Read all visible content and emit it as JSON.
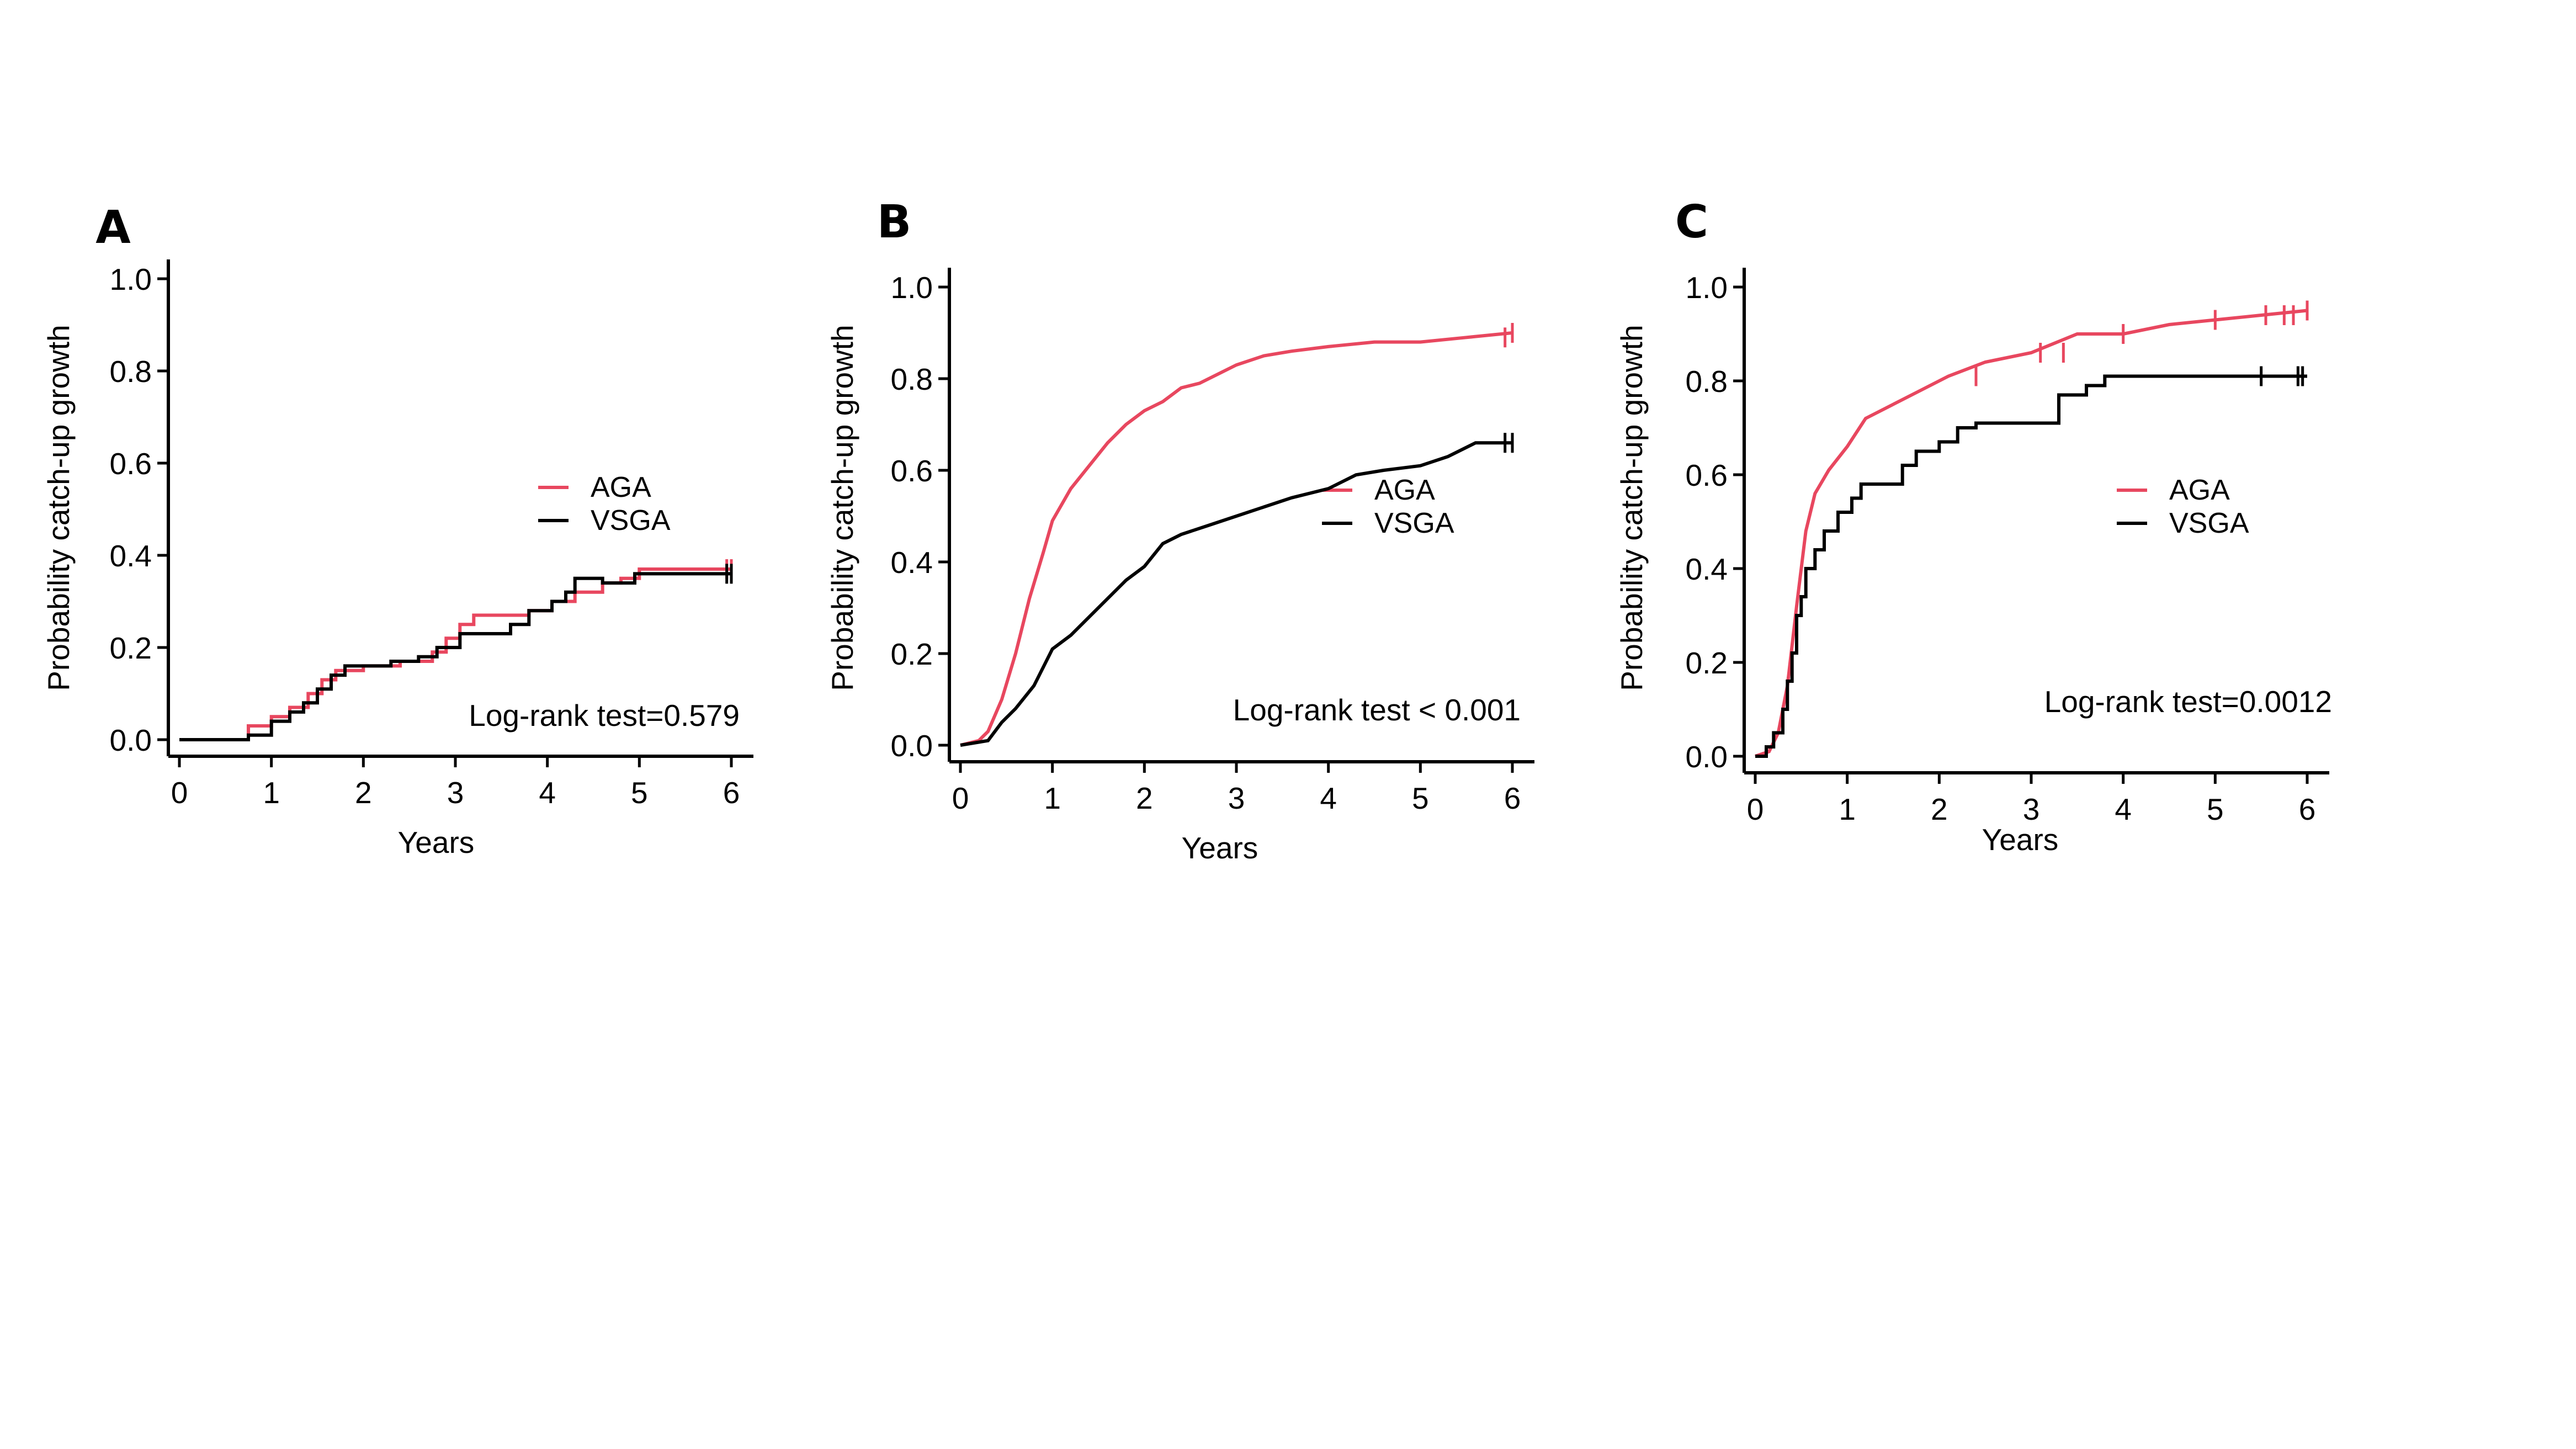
{
  "chart_data": [
    {
      "type": "line",
      "panel": "A",
      "title": "",
      "xlabel": "Years",
      "ylabel": "Probability catch-up growth",
      "xlim": [
        0,
        6
      ],
      "ylim": [
        0,
        1
      ],
      "xticks": [
        "0",
        "1",
        "2",
        "3",
        "4",
        "5",
        "6"
      ],
      "yticks": [
        "0.0",
        "0.2",
        "0.4",
        "0.6",
        "0.8",
        "1.0"
      ],
      "annotation": "Log-rank test=0.579",
      "legend_position": "right",
      "series": [
        {
          "name": "AGA",
          "color": "#e8475f",
          "step": true,
          "points": [
            [
              0,
              0
            ],
            [
              0.75,
              0
            ],
            [
              0.75,
              0.03
            ],
            [
              1.0,
              0.03
            ],
            [
              1.0,
              0.05
            ],
            [
              1.2,
              0.05
            ],
            [
              1.2,
              0.07
            ],
            [
              1.4,
              0.07
            ],
            [
              1.4,
              0.1
            ],
            [
              1.55,
              0.1
            ],
            [
              1.55,
              0.13
            ],
            [
              1.7,
              0.13
            ],
            [
              1.7,
              0.15
            ],
            [
              2.0,
              0.15
            ],
            [
              2.0,
              0.16
            ],
            [
              2.4,
              0.16
            ],
            [
              2.4,
              0.17
            ],
            [
              2.75,
              0.17
            ],
            [
              2.75,
              0.19
            ],
            [
              2.9,
              0.19
            ],
            [
              2.9,
              0.22
            ],
            [
              3.05,
              0.22
            ],
            [
              3.05,
              0.25
            ],
            [
              3.2,
              0.25
            ],
            [
              3.2,
              0.27
            ],
            [
              3.8,
              0.27
            ],
            [
              3.8,
              0.28
            ],
            [
              4.05,
              0.28
            ],
            [
              4.05,
              0.3
            ],
            [
              4.3,
              0.3
            ],
            [
              4.3,
              0.32
            ],
            [
              4.6,
              0.32
            ],
            [
              4.6,
              0.34
            ],
            [
              4.8,
              0.34
            ],
            [
              4.8,
              0.35
            ],
            [
              5.0,
              0.35
            ],
            [
              5.0,
              0.37
            ],
            [
              6.0,
              0.37
            ]
          ],
          "censored": [
            5.95,
            6.0
          ]
        },
        {
          "name": "VSGA",
          "color": "#000000",
          "step": true,
          "points": [
            [
              0,
              0
            ],
            [
              0.75,
              0
            ],
            [
              0.75,
              0.01
            ],
            [
              1.0,
              0.01
            ],
            [
              1.0,
              0.04
            ],
            [
              1.2,
              0.04
            ],
            [
              1.2,
              0.06
            ],
            [
              1.35,
              0.06
            ],
            [
              1.35,
              0.08
            ],
            [
              1.5,
              0.08
            ],
            [
              1.5,
              0.11
            ],
            [
              1.65,
              0.11
            ],
            [
              1.65,
              0.14
            ],
            [
              1.8,
              0.14
            ],
            [
              1.8,
              0.16
            ],
            [
              2.3,
              0.16
            ],
            [
              2.3,
              0.17
            ],
            [
              2.6,
              0.17
            ],
            [
              2.6,
              0.18
            ],
            [
              2.8,
              0.18
            ],
            [
              2.8,
              0.2
            ],
            [
              3.05,
              0.2
            ],
            [
              3.05,
              0.23
            ],
            [
              3.6,
              0.23
            ],
            [
              3.6,
              0.25
            ],
            [
              3.8,
              0.25
            ],
            [
              3.8,
              0.28
            ],
            [
              4.05,
              0.28
            ],
            [
              4.05,
              0.3
            ],
            [
              4.2,
              0.3
            ],
            [
              4.2,
              0.32
            ],
            [
              4.3,
              0.32
            ],
            [
              4.3,
              0.35
            ],
            [
              4.6,
              0.35
            ],
            [
              4.6,
              0.34
            ],
            [
              4.95,
              0.34
            ],
            [
              4.95,
              0.36
            ],
            [
              6.0,
              0.36
            ]
          ],
          "censored": [
            5.95,
            6.0
          ]
        }
      ]
    },
    {
      "type": "line",
      "panel": "B",
      "title": "",
      "xlabel": "Years",
      "ylabel": "Probability catch-up growth",
      "xlim": [
        0,
        6
      ],
      "ylim": [
        0,
        1
      ],
      "xticks": [
        "0",
        "1",
        "2",
        "3",
        "4",
        "5",
        "6"
      ],
      "yticks": [
        "0.0",
        "0.2",
        "0.4",
        "0.6",
        "0.8",
        "1.0"
      ],
      "annotation": "Log-rank test < 0.001",
      "legend_position": "right",
      "series": [
        {
          "name": "AGA",
          "color": "#e8475f",
          "step": false,
          "points": [
            [
              0,
              0
            ],
            [
              0.2,
              0.01
            ],
            [
              0.3,
              0.03
            ],
            [
              0.45,
              0.1
            ],
            [
              0.6,
              0.2
            ],
            [
              0.75,
              0.32
            ],
            [
              0.9,
              0.42
            ],
            [
              1.0,
              0.49
            ],
            [
              1.2,
              0.56
            ],
            [
              1.4,
              0.61
            ],
            [
              1.6,
              0.66
            ],
            [
              1.8,
              0.7
            ],
            [
              2.0,
              0.73
            ],
            [
              2.2,
              0.75
            ],
            [
              2.4,
              0.78
            ],
            [
              2.6,
              0.79
            ],
            [
              2.8,
              0.81
            ],
            [
              3.0,
              0.83
            ],
            [
              3.3,
              0.85
            ],
            [
              3.6,
              0.86
            ],
            [
              4.0,
              0.87
            ],
            [
              4.5,
              0.88
            ],
            [
              5.0,
              0.88
            ],
            [
              5.5,
              0.89
            ],
            [
              6.0,
              0.9
            ]
          ],
          "censored": [
            5.92,
            6.0
          ]
        },
        {
          "name": "VSGA",
          "color": "#000000",
          "step": false,
          "points": [
            [
              0,
              0
            ],
            [
              0.3,
              0.01
            ],
            [
              0.45,
              0.05
            ],
            [
              0.6,
              0.08
            ],
            [
              0.8,
              0.13
            ],
            [
              1.0,
              0.21
            ],
            [
              1.2,
              0.24
            ],
            [
              1.4,
              0.28
            ],
            [
              1.6,
              0.32
            ],
            [
              1.8,
              0.36
            ],
            [
              2.0,
              0.39
            ],
            [
              2.2,
              0.44
            ],
            [
              2.4,
              0.46
            ],
            [
              2.7,
              0.48
            ],
            [
              3.0,
              0.5
            ],
            [
              3.3,
              0.52
            ],
            [
              3.6,
              0.54
            ],
            [
              4.0,
              0.56
            ],
            [
              4.3,
              0.59
            ],
            [
              4.6,
              0.6
            ],
            [
              5.0,
              0.61
            ],
            [
              5.3,
              0.63
            ],
            [
              5.6,
              0.66
            ],
            [
              6.0,
              0.66
            ]
          ],
          "censored": [
            5.92,
            6.0
          ]
        }
      ]
    },
    {
      "type": "line",
      "panel": "C",
      "title": "",
      "xlabel": "Years",
      "ylabel": "Probability catch-up growth",
      "xlim": [
        0,
        6
      ],
      "ylim": [
        0,
        1
      ],
      "xticks": [
        "0",
        "1",
        "2",
        "3",
        "4",
        "5",
        "6"
      ],
      "yticks": [
        "0.0",
        "0.2",
        "0.4",
        "0.6",
        "0.8",
        "1.0"
      ],
      "annotation": "Log-rank test=0.0012",
      "legend_position": "right",
      "series": [
        {
          "name": "AGA",
          "color": "#e8475f",
          "step": false,
          "points": [
            [
              0,
              0
            ],
            [
              0.15,
              0.01
            ],
            [
              0.25,
              0.05
            ],
            [
              0.35,
              0.15
            ],
            [
              0.45,
              0.32
            ],
            [
              0.55,
              0.48
            ],
            [
              0.65,
              0.56
            ],
            [
              0.8,
              0.61
            ],
            [
              1.0,
              0.66
            ],
            [
              1.2,
              0.72
            ],
            [
              1.5,
              0.75
            ],
            [
              1.8,
              0.78
            ],
            [
              2.1,
              0.81
            ],
            [
              2.5,
              0.84
            ],
            [
              3.0,
              0.86
            ],
            [
              3.5,
              0.9
            ],
            [
              4.0,
              0.9
            ],
            [
              4.5,
              0.92
            ],
            [
              5.0,
              0.93
            ],
            [
              5.5,
              0.94
            ],
            [
              6.0,
              0.95
            ]
          ],
          "censored": [
            2.4,
            3.1,
            3.35,
            4.0,
            5.0,
            5.55,
            5.75,
            5.85,
            6.0
          ]
        },
        {
          "name": "VSGA",
          "color": "#000000",
          "step": true,
          "points": [
            [
              0,
              0
            ],
            [
              0.12,
              0
            ],
            [
              0.12,
              0.02
            ],
            [
              0.2,
              0.02
            ],
            [
              0.2,
              0.05
            ],
            [
              0.3,
              0.05
            ],
            [
              0.3,
              0.1
            ],
            [
              0.35,
              0.1
            ],
            [
              0.35,
              0.16
            ],
            [
              0.4,
              0.16
            ],
            [
              0.4,
              0.22
            ],
            [
              0.45,
              0.22
            ],
            [
              0.45,
              0.3
            ],
            [
              0.5,
              0.3
            ],
            [
              0.5,
              0.34
            ],
            [
              0.55,
              0.34
            ],
            [
              0.55,
              0.4
            ],
            [
              0.65,
              0.4
            ],
            [
              0.65,
              0.44
            ],
            [
              0.75,
              0.44
            ],
            [
              0.75,
              0.48
            ],
            [
              0.9,
              0.48
            ],
            [
              0.9,
              0.52
            ],
            [
              1.05,
              0.52
            ],
            [
              1.05,
              0.55
            ],
            [
              1.15,
              0.55
            ],
            [
              1.15,
              0.58
            ],
            [
              1.6,
              0.58
            ],
            [
              1.6,
              0.62
            ],
            [
              1.75,
              0.62
            ],
            [
              1.75,
              0.65
            ],
            [
              2.0,
              0.65
            ],
            [
              2.0,
              0.67
            ],
            [
              2.2,
              0.67
            ],
            [
              2.2,
              0.7
            ],
            [
              2.4,
              0.7
            ],
            [
              2.4,
              0.71
            ],
            [
              3.3,
              0.71
            ],
            [
              3.3,
              0.77
            ],
            [
              3.6,
              0.77
            ],
            [
              3.6,
              0.79
            ],
            [
              3.8,
              0.79
            ],
            [
              3.8,
              0.81
            ],
            [
              6.0,
              0.81
            ]
          ],
          "censored": [
            5.5,
            5.9,
            5.95
          ]
        }
      ]
    }
  ]
}
